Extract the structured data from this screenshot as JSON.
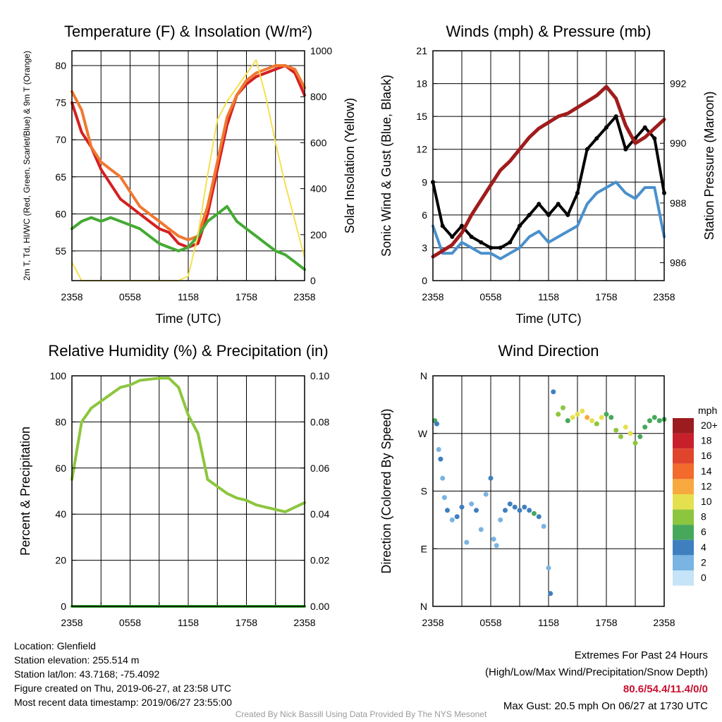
{
  "chart_data": [
    {
      "type": "line",
      "title": "Temperature (F) & Insolation (W/m²)",
      "xlabel": "Time (UTC)",
      "ylabel_left": "2m T, Td, HI/WC (Red, Green, Scarlet/Blue) & 9m T (Orange)",
      "ylabel_right": "Solar Insolation (Yellow)",
      "x_ticks": [
        "2358",
        "0558",
        "1158",
        "1758",
        "2358"
      ],
      "ylim": [
        51,
        82
      ],
      "y_ticks": [
        55,
        60,
        65,
        70,
        75,
        80
      ],
      "y2lim": [
        0,
        1000
      ],
      "y2_ticks": [
        0,
        200,
        400,
        600,
        800,
        1000
      ],
      "x_hours": [
        0,
        1,
        2,
        3,
        4,
        5,
        6,
        7,
        8,
        9,
        10,
        11,
        12,
        13,
        14,
        15,
        16,
        17,
        18,
        19,
        20,
        21,
        22,
        23,
        24
      ],
      "series": [
        {
          "name": "2m T",
          "color": "#d42020",
          "values": [
            75,
            71,
            69,
            66,
            64,
            62,
            61,
            60,
            59,
            58,
            57.5,
            56,
            55.5,
            56,
            60,
            66,
            72,
            76,
            77.5,
            78.5,
            79,
            79.5,
            80,
            79,
            76
          ]
        },
        {
          "name": "9m T",
          "color": "#f07830",
          "values": [
            76.5,
            74,
            69,
            67,
            66,
            65,
            63,
            61,
            60,
            59,
            58,
            57,
            56.5,
            57,
            61,
            67,
            73,
            76,
            78,
            79,
            79.5,
            80,
            80,
            79.5,
            77
          ]
        },
        {
          "name": "Td",
          "color": "#44aa33",
          "values": [
            58,
            59,
            59.5,
            59,
            59.5,
            59,
            58.5,
            58,
            57,
            56,
            55.5,
            55,
            55.5,
            57,
            59,
            60,
            61,
            59,
            58,
            57,
            56,
            55,
            54.5,
            53.5,
            52.5
          ]
        },
        {
          "name": "Solar Insolation",
          "color": "#f5e050",
          "axis": "right",
          "values": [
            80,
            0,
            0,
            0,
            0,
            0,
            0,
            0,
            0,
            0,
            0,
            0,
            20,
            200,
            460,
            700,
            780,
            840,
            900,
            960,
            800,
            600,
            420,
            260,
            100
          ]
        }
      ]
    },
    {
      "type": "line",
      "title": "Winds (mph) & Pressure (mb)",
      "xlabel": "Time (UTC)",
      "ylabel_left": "Sonic Wind & Gust (Blue, Black)",
      "ylabel_right": "Station Pressure (Maroon)",
      "x_ticks": [
        "2358",
        "0558",
        "1158",
        "1758",
        "2358"
      ],
      "ylim": [
        0,
        21
      ],
      "y_ticks": [
        0,
        3,
        6,
        9,
        12,
        15,
        18,
        21
      ],
      "y2lim": [
        985.4,
        993.1
      ],
      "y2_ticks": [
        986,
        988,
        990,
        992
      ],
      "x_hours": [
        0,
        1,
        2,
        3,
        4,
        5,
        6,
        7,
        8,
        9,
        10,
        11,
        12,
        13,
        14,
        15,
        16,
        17,
        18,
        19,
        20,
        21,
        22,
        23,
        24
      ],
      "series": [
        {
          "name": "Sonic Wind",
          "color": "#4a90cc",
          "values": [
            5,
            2.5,
            2.5,
            3.5,
            3,
            2.5,
            2.5,
            2,
            2.5,
            3,
            4,
            4.5,
            3.5,
            4,
            4.5,
            5,
            7,
            8,
            8.5,
            9,
            8,
            7.5,
            8.5,
            8.5,
            4
          ]
        },
        {
          "name": "Gust",
          "color": "#000000",
          "values": [
            9,
            5,
            4,
            5,
            4,
            3.5,
            3,
            3,
            3.5,
            5,
            6,
            7,
            6,
            7,
            6,
            8,
            12,
            13,
            14,
            15,
            12,
            13,
            14,
            13,
            8
          ]
        },
        {
          "name": "Station Pressure",
          "color": "#a01c1c",
          "axis": "right",
          "values": [
            986.2,
            986.4,
            986.6,
            987.0,
            987.6,
            988.1,
            988.6,
            989.1,
            989.4,
            989.8,
            990.2,
            990.5,
            990.7,
            990.9,
            991.0,
            991.2,
            991.4,
            991.6,
            991.9,
            991.5,
            990.6,
            990.0,
            990.2,
            990.5,
            990.8
          ]
        }
      ]
    },
    {
      "type": "line",
      "title": "Relative Humidity (%) & Precipitation (in)",
      "xlabel": "",
      "ylabel_left": "Percent & Precipitation",
      "x_ticks": [
        "2358",
        "0558",
        "1158",
        "1758",
        "2358"
      ],
      "ylim": [
        0,
        100
      ],
      "y_ticks": [
        0,
        20,
        40,
        60,
        80,
        100
      ],
      "y2lim": [
        0,
        0.1
      ],
      "y2_ticks": [
        "0.00",
        "0.02",
        "0.04",
        "0.06",
        "0.08",
        "0.10"
      ],
      "x_hours": [
        0,
        1,
        2,
        3,
        4,
        5,
        6,
        7,
        8,
        9,
        10,
        11,
        12,
        13,
        14,
        15,
        16,
        17,
        18,
        19,
        20,
        21,
        22,
        23,
        24
      ],
      "series": [
        {
          "name": "Relative Humidity",
          "color": "#8cc63e",
          "values": [
            55,
            80,
            86,
            89,
            92,
            95,
            96,
            98,
            98.5,
            99,
            99,
            95,
            83,
            75,
            55,
            52,
            49,
            47,
            46,
            44,
            43,
            42,
            41,
            43,
            45
          ]
        },
        {
          "name": "Precipitation",
          "color": "#3aaa35",
          "axis": "right",
          "values": [
            0,
            0,
            0,
            0,
            0,
            0,
            0,
            0,
            0,
            0,
            0,
            0,
            0,
            0,
            0,
            0,
            0,
            0,
            0,
            0,
            0,
            0,
            0,
            0,
            0
          ]
        }
      ]
    },
    {
      "type": "scatter",
      "title": "Wind Direction",
      "ylabel_left": "Direction (Colored By Speed)",
      "x_ticks": [
        "2358",
        "0558",
        "1158",
        "1758",
        "2358"
      ],
      "y_ticks": [
        "N",
        "E",
        "S",
        "W",
        "N"
      ],
      "ylim": [
        0,
        360
      ],
      "legend_title": "mph",
      "legend_labels": [
        "20+",
        "18",
        "16",
        "14",
        "12",
        "10",
        "8",
        "6",
        "4",
        "2",
        "0"
      ],
      "legend_colors": [
        "#9b1b1e",
        "#c8202a",
        "#e0442c",
        "#f26a2c",
        "#f7a93f",
        "#e5e04d",
        "#8cc63e",
        "#46a85a",
        "#3f7fbf",
        "#79b4e2",
        "#c5e4f7"
      ],
      "points": [
        [
          0.2,
          290,
          6
        ],
        [
          0.4,
          285,
          4
        ],
        [
          0.6,
          245,
          2
        ],
        [
          0.8,
          230,
          3
        ],
        [
          1.0,
          200,
          2
        ],
        [
          1.2,
          170,
          2
        ],
        [
          1.5,
          150,
          3
        ],
        [
          2.0,
          135,
          2
        ],
        [
          2.5,
          140,
          3
        ],
        [
          3.0,
          155,
          3
        ],
        [
          3.5,
          100,
          2
        ],
        [
          4.0,
          160,
          2
        ],
        [
          4.5,
          150,
          3
        ],
        [
          5.0,
          120,
          2
        ],
        [
          5.5,
          175,
          2
        ],
        [
          6.0,
          200,
          3
        ],
        [
          6.3,
          105,
          1
        ],
        [
          6.6,
          95,
          1
        ],
        [
          7.0,
          135,
          2
        ],
        [
          7.5,
          150,
          3
        ],
        [
          8.0,
          160,
          3
        ],
        [
          8.5,
          155,
          3
        ],
        [
          9.0,
          150,
          4
        ],
        [
          9.5,
          155,
          4
        ],
        [
          10.0,
          150,
          4
        ],
        [
          10.5,
          145,
          5
        ],
        [
          11.0,
          140,
          3
        ],
        [
          11.5,
          125,
          2
        ],
        [
          12.0,
          60,
          2
        ],
        [
          12.2,
          20,
          4
        ],
        [
          12.5,
          335,
          4
        ],
        [
          13.0,
          300,
          7
        ],
        [
          13.5,
          310,
          8
        ],
        [
          14.0,
          290,
          6
        ],
        [
          14.5,
          295,
          9
        ],
        [
          15.0,
          300,
          10
        ],
        [
          15.5,
          305,
          9
        ],
        [
          16.0,
          295,
          11
        ],
        [
          16.5,
          290,
          10
        ],
        [
          17.0,
          285,
          8
        ],
        [
          17.5,
          295,
          9
        ],
        [
          18.0,
          300,
          6
        ],
        [
          18.5,
          295,
          5
        ],
        [
          19.0,
          275,
          7
        ],
        [
          19.5,
          265,
          8
        ],
        [
          20.0,
          280,
          10
        ],
        [
          20.5,
          270,
          9
        ],
        [
          21.0,
          255,
          7
        ],
        [
          21.5,
          265,
          6
        ],
        [
          22.0,
          280,
          6
        ],
        [
          22.5,
          290,
          5
        ],
        [
          23.0,
          295,
          6
        ],
        [
          23.5,
          290,
          5
        ],
        [
          24.0,
          292,
          5
        ]
      ]
    }
  ],
  "info": {
    "location": "Location: Glenfield",
    "elevation": "Station elevation: 255.514 m",
    "latlon": "Station lat/lon: 43.7168; -75.4092",
    "created": "Figure created on Thu, 2019-06-27, at 23:58 UTC",
    "recent": "Most recent data timestamp: 2019/06/27 23:55:00"
  },
  "extremes": {
    "title": "Extremes For Past 24 Hours",
    "subtitle": "(High/Low/Max Wind/Precipitation/Snow Depth)",
    "values": "80.6/54.4/11.4/0/0",
    "gust": "Max Gust: 20.5 mph On 06/27 at 1730 UTC"
  },
  "credit": "Created By Nick Bassill Using Data Provided By The NYS Mesonet",
  "colors": {
    "grid": "#000000",
    "text": "#000000",
    "accent_red": "#c8102e"
  }
}
